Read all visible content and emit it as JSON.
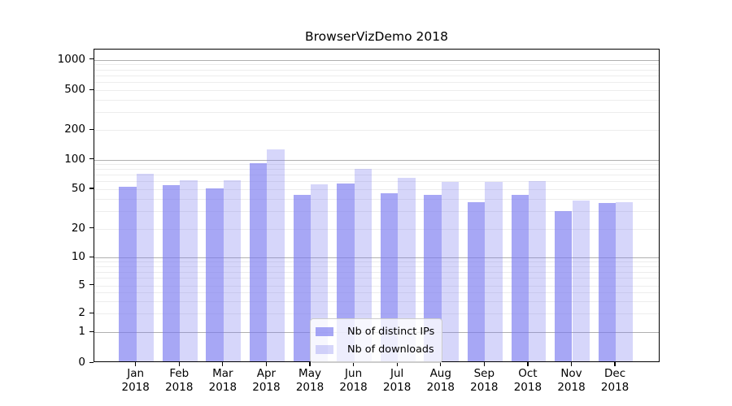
{
  "chart_data": {
    "type": "bar",
    "title": "BrowserVizDemo 2018",
    "categories": [
      "Jan",
      "Feb",
      "Mar",
      "Apr",
      "May",
      "Jun",
      "Jul",
      "Aug",
      "Sep",
      "Oct",
      "Nov",
      "Dec"
    ],
    "category_year": "2018",
    "series": [
      {
        "name": "Nb of distinct IPs",
        "base_color": "#7878f0",
        "alpha": 0.65,
        "values": [
          53,
          55,
          51,
          91,
          44,
          57,
          45,
          44,
          37,
          44,
          30,
          36
        ]
      },
      {
        "name": "Nb of downloads",
        "base_color": "#7878f0",
        "alpha": 0.3,
        "values": [
          71,
          62,
          62,
          127,
          56,
          80,
          65,
          59,
          59,
          60,
          38,
          37
        ]
      }
    ],
    "y_ticks": [
      0,
      1,
      2,
      5,
      10,
      20,
      50,
      100,
      200,
      500,
      1000
    ],
    "y_scale": "log-like (compressed linear below 2, log above)",
    "ylim": [
      0,
      1000
    ],
    "grid": "major gray lines at 1,10,100,1000; faint minor lines at 2-9 of each decade",
    "legend_position": "inside plot, lower center",
    "colors": {
      "bar_dark_rendered": "#a7a7f5",
      "bar_light_rendered": "#d7d7fb",
      "major_grid": "#b0b0b0",
      "minor_grid": "#ededed",
      "axis_frame": "#000000",
      "background": "#ffffff",
      "legend_border": "#cccccc"
    }
  }
}
